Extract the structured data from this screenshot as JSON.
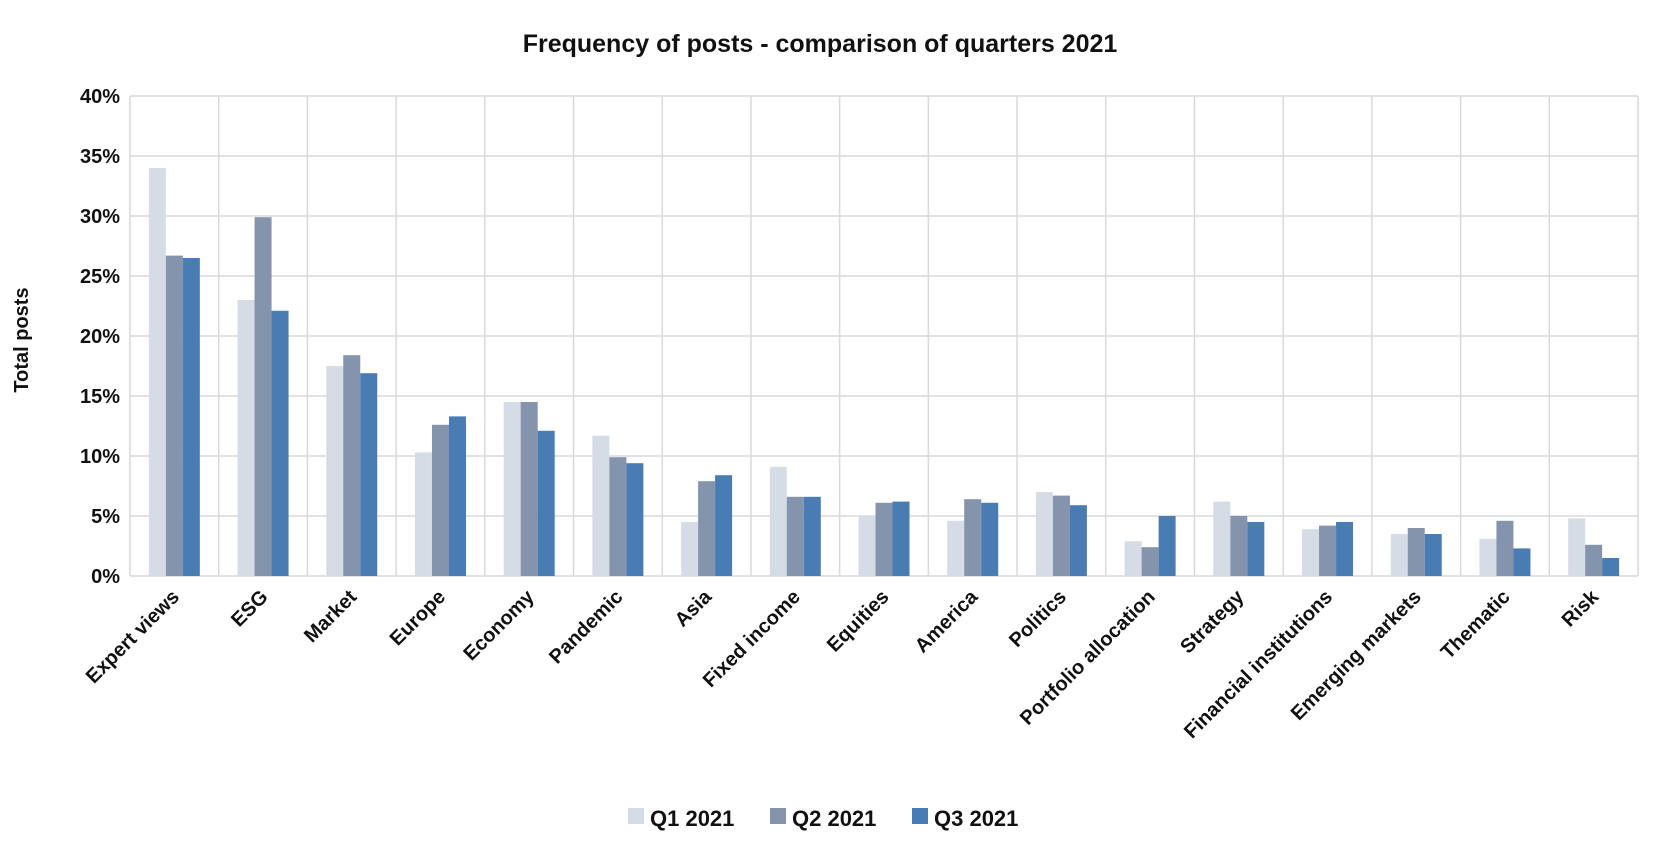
{
  "chart_data": {
    "type": "bar",
    "title": "Frequency of posts - comparison of quarters 2021",
    "ylabel": "Total posts",
    "xlabel": "",
    "ylim": [
      0,
      40
    ],
    "yticks": [
      "0%",
      "5%",
      "10%",
      "15%",
      "20%",
      "25%",
      "30%",
      "35%",
      "40%"
    ],
    "grid": true,
    "legend_position": "bottom",
    "categories": [
      "Expert views",
      "ESG",
      "Market",
      "Europe",
      "Economy",
      "Pandemic",
      "Asia",
      "Fixed income",
      "Equities",
      "America",
      "Politics",
      "Portfolio allocation",
      "Strategy",
      "Financial institutions",
      "Emerging markets",
      "Thematic",
      "Risk"
    ],
    "series": [
      {
        "name": "Q1 2021",
        "color": "#d6dce6",
        "values": [
          34.0,
          23.0,
          17.5,
          10.3,
          14.5,
          11.7,
          4.5,
          9.1,
          5.0,
          4.6,
          7.0,
          2.9,
          6.2,
          3.9,
          3.5,
          3.1,
          4.8
        ]
      },
      {
        "name": "Q2 2021",
        "color": "#8494ac",
        "values": [
          26.7,
          29.9,
          18.4,
          12.6,
          14.5,
          9.9,
          7.9,
          6.6,
          6.1,
          6.4,
          6.7,
          2.4,
          5.0,
          4.2,
          4.0,
          4.6,
          2.6
        ]
      },
      {
        "name": "Q3 2021",
        "color": "#4a7cb4",
        "values": [
          26.5,
          22.1,
          16.9,
          13.3,
          12.1,
          9.4,
          8.4,
          6.6,
          6.2,
          6.1,
          5.9,
          5.0,
          4.5,
          4.5,
          3.5,
          2.3,
          1.5
        ]
      }
    ]
  }
}
